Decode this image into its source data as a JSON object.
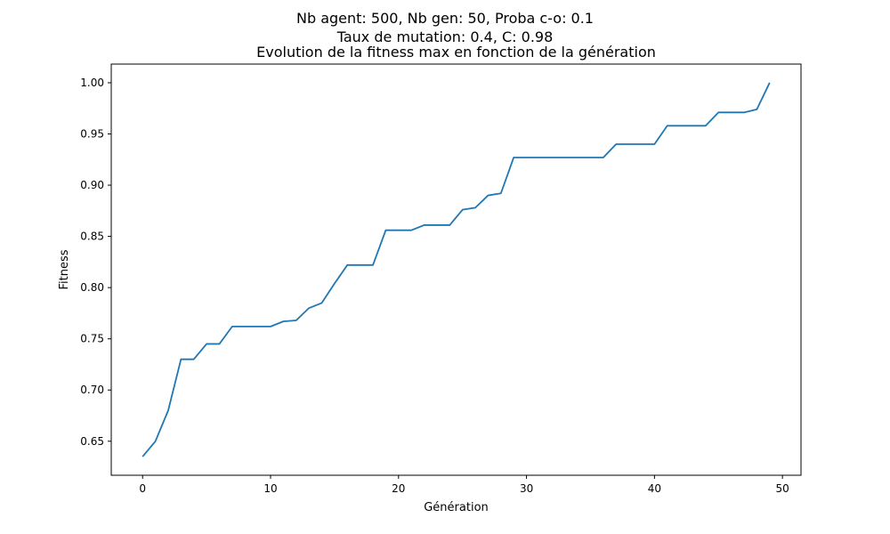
{
  "figure": {
    "suptitle_lines": [
      "Nb agent: 500, Nb gen: 50, Proba c-o: 0.1",
      "Taux de mutation: 0.4, C: 0.98"
    ]
  },
  "chart_data": {
    "type": "line",
    "title": "Evolution de la fitness max en fonction de la génération",
    "xlabel": "Génération",
    "ylabel": "Fitness",
    "xlim": [
      -2.45,
      51.45
    ],
    "ylim": [
      0.6168,
      1.0182
    ],
    "xticks": [
      0,
      10,
      20,
      30,
      40,
      50
    ],
    "xtick_labels": [
      "0",
      "10",
      "20",
      "30",
      "40",
      "50"
    ],
    "yticks": [
      0.65,
      0.7,
      0.75,
      0.8,
      0.85,
      0.9,
      0.95,
      1.0
    ],
    "ytick_labels": [
      "0.65",
      "0.70",
      "0.75",
      "0.80",
      "0.85",
      "0.90",
      "0.95",
      "1.00"
    ],
    "grid": false,
    "series": [
      {
        "color": "#1f77b4",
        "x": [
          0,
          1,
          2,
          3,
          4,
          5,
          6,
          7,
          8,
          9,
          10,
          11,
          12,
          13,
          14,
          15,
          16,
          17,
          18,
          19,
          20,
          21,
          22,
          23,
          24,
          25,
          26,
          27,
          28,
          29,
          30,
          31,
          32,
          33,
          34,
          35,
          36,
          37,
          38,
          39,
          40,
          41,
          42,
          43,
          44,
          45,
          46,
          47,
          48,
          49
        ],
        "y": [
          0.635,
          0.65,
          0.68,
          0.73,
          0.73,
          0.745,
          0.745,
          0.762,
          0.762,
          0.762,
          0.762,
          0.767,
          0.768,
          0.78,
          0.785,
          0.804,
          0.822,
          0.822,
          0.822,
          0.856,
          0.856,
          0.856,
          0.861,
          0.861,
          0.861,
          0.876,
          0.878,
          0.89,
          0.892,
          0.927,
          0.927,
          0.927,
          0.927,
          0.927,
          0.927,
          0.927,
          0.927,
          0.94,
          0.94,
          0.94,
          0.94,
          0.958,
          0.958,
          0.958,
          0.958,
          0.971,
          0.971,
          0.971,
          0.974,
          1.0
        ]
      }
    ]
  }
}
